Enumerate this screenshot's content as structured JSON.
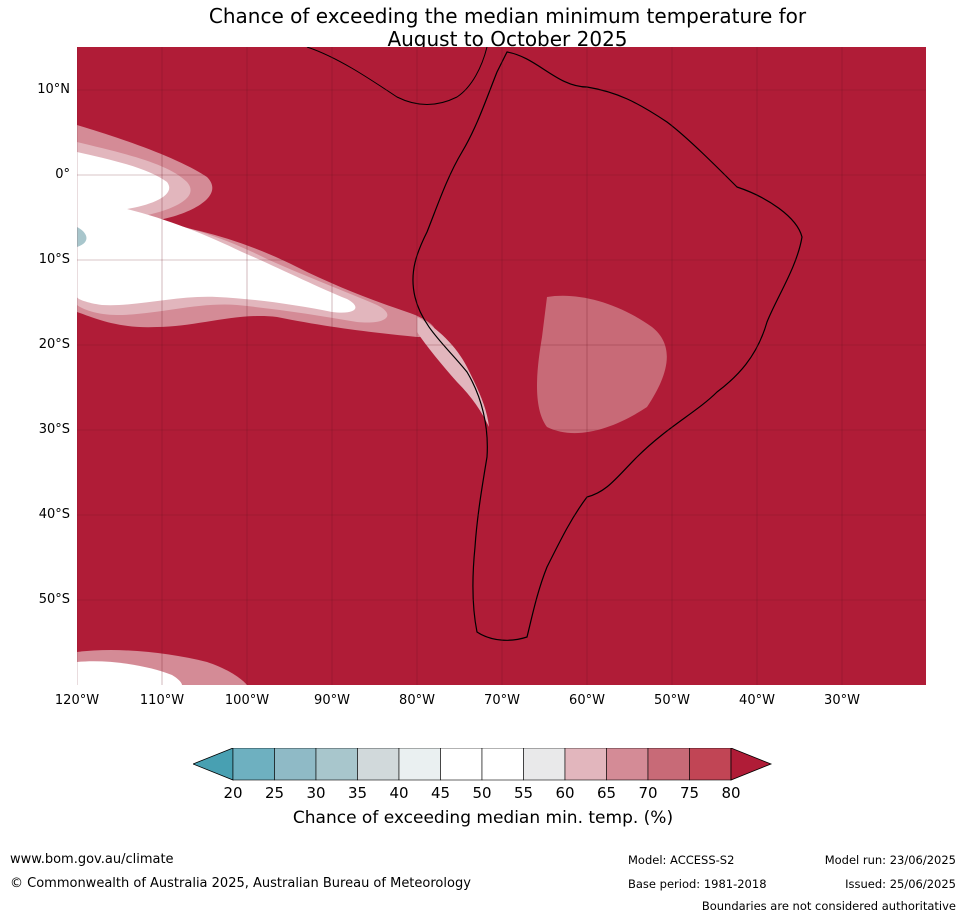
{
  "title_line1": "Chance of exceeding the median minimum temperature for",
  "title_line2": "August to October 2025",
  "map": {
    "lat_labels": [
      "10°N",
      "0°",
      "10°S",
      "20°S",
      "30°S",
      "40°S",
      "50°S"
    ],
    "lon_labels": [
      "120°W",
      "110°W",
      "100°W",
      "90°W",
      "80°W",
      "70°W",
      "60°W",
      "50°W",
      "40°W",
      "30°W"
    ]
  },
  "colorbar": {
    "ticks": [
      "20",
      "25",
      "30",
      "35",
      "40",
      "45",
      "50",
      "55",
      "60",
      "65",
      "70",
      "75",
      "80"
    ],
    "colors": [
      "#48a0b2",
      "#6eb0c0",
      "#8fbac6",
      "#a8c6cc",
      "#d1d9db",
      "#eaf0f1",
      "#ffffff",
      "#ffffff",
      "#e9e9ea",
      "#e2b6bd",
      "#d48b96",
      "#c86a77",
      "#c14555",
      "#b01c37"
    ],
    "label": "Chance of exceeding median min. temp. (%)"
  },
  "footer": {
    "website": "www.bom.gov.au/climate",
    "copyright": "© Commonwealth of Australia 2025, Australian Bureau of Meteorology",
    "model": "Model: ACCESS-S2",
    "base_period": "Base period: 1981-2018",
    "model_run": "Model run: 23/06/2025",
    "issued": "Issued: 25/06/2025",
    "disclaimer": "Boundaries are not considered authoritative"
  }
}
